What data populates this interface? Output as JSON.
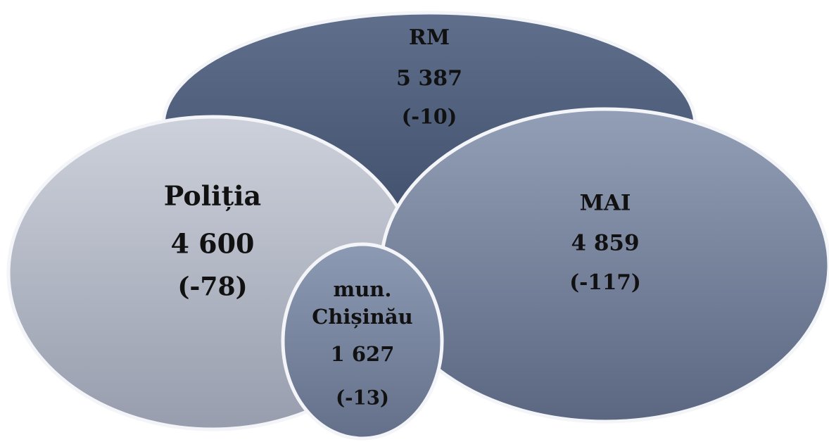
{
  "nodes": [
    {
      "label_lines": [
        "RM"
      ],
      "value": "5 387",
      "change": "(-10)"
    },
    {
      "label_lines": [
        "Poliția"
      ],
      "value": "4 600",
      "change": "(-78)"
    },
    {
      "label_lines": [
        "MAI"
      ],
      "value": "4 859",
      "change": "(-117)"
    },
    {
      "label_lines": [
        "mun.",
        "Chișinău"
      ],
      "value": "1 627",
      "change": "(-13)"
    }
  ]
}
